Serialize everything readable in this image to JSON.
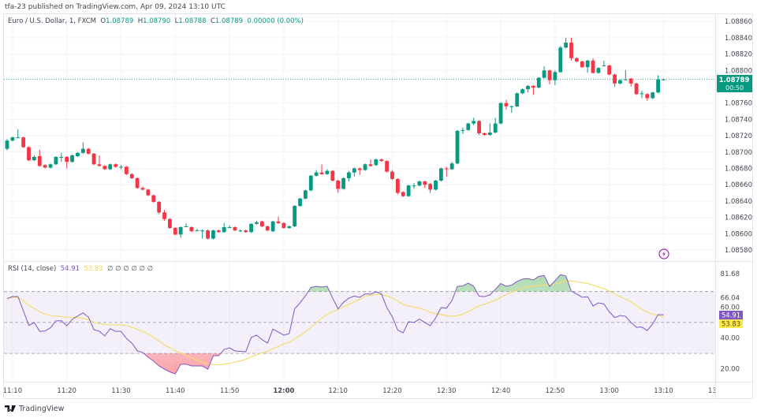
{
  "published": "tfa-23 published on TradingView.com, Apr 09, 2024 13:10 UTC",
  "legend": {
    "symbol": "Euro / U.S. Dollar, 1, FXCM",
    "o_label": "O",
    "o": "1.08789",
    "h_label": "H",
    "h": "1.08790",
    "l_label": "L",
    "l": "1.08788",
    "c_label": "C",
    "c": "1.08789",
    "change": "0.00000 (0.00%)"
  },
  "rsi_legend": {
    "title": "RSI (14, close)",
    "rsi": "54.91",
    "ma": "53.83",
    "extras": "∅ ∅ ∅ ∅ ∅ ∅"
  },
  "price_label": {
    "value": "1.08789",
    "countdown": "00:50"
  },
  "rsi_labels": {
    "rsi": "54.91",
    "ma": "53.83"
  },
  "footer": {
    "brand": "TradingView"
  },
  "icons": {
    "alert": "lightning-icon",
    "logo": "tradingview-logo"
  },
  "colors": {
    "up": "#089981",
    "down": "#f23645",
    "rsi": "#7e57c2",
    "rsi_ma": "#f5dc6e",
    "price_line": "#089981",
    "alert": "#9c27b0"
  },
  "chart_data": [
    {
      "type": "candlestick",
      "title": "Euro / U.S. Dollar, 1, FXCM",
      "x_ticks": [
        "11:10",
        "11:20",
        "11:30",
        "11:40",
        "11:50",
        "12:00",
        "12:10",
        "12:20",
        "12:30",
        "12:40",
        "12:50",
        "13:00",
        "13:10",
        "13:20"
      ],
      "first_bar_time": "11:09",
      "last_bar_time": "13:10",
      "interval_minutes": 1,
      "y_ticks": [
        "1.08860",
        "1.08840",
        "1.08820",
        "1.08800",
        "1.08760",
        "1.08740",
        "1.08720",
        "1.08700",
        "1.08680",
        "1.08660",
        "1.08640",
        "1.08620",
        "1.08600",
        "1.08580"
      ],
      "ylim": [
        1.08572,
        1.08868
      ],
      "grid": true,
      "current_price": 1.08789,
      "ohlc": [
        [
          1.08704,
          1.08716,
          1.08702,
          1.08714
        ],
        [
          1.08714,
          1.08719,
          1.08713,
          1.08718
        ],
        [
          1.08718,
          1.08728,
          1.08717,
          1.08718
        ],
        [
          1.08718,
          1.08719,
          1.08705,
          1.08706
        ],
        [
          1.08706,
          1.08707,
          1.08689,
          1.0869
        ],
        [
          1.0869,
          1.08696,
          1.08689,
          1.08694
        ],
        [
          1.08695,
          1.08703,
          1.08682,
          1.08683
        ],
        [
          1.08684,
          1.08685,
          1.0868,
          1.08681
        ],
        [
          1.08681,
          1.08686,
          1.0868,
          1.08685
        ],
        [
          1.08685,
          1.08695,
          1.08684,
          1.08694
        ],
        [
          1.08694,
          1.08699,
          1.08688,
          1.08694
        ],
        [
          1.08694,
          1.08695,
          1.0868,
          1.08688
        ],
        [
          1.08688,
          1.08697,
          1.08687,
          1.08696
        ],
        [
          1.08695,
          1.087,
          1.08694,
          1.08699
        ],
        [
          1.08699,
          1.08712,
          1.08698,
          1.08704
        ],
        [
          1.08704,
          1.08705,
          1.08697,
          1.08698
        ],
        [
          1.08698,
          1.08699,
          1.08684,
          1.08685
        ],
        [
          1.08685,
          1.08696,
          1.08682,
          1.08683
        ],
        [
          1.08683,
          1.08684,
          1.08678,
          1.08679
        ],
        [
          1.08679,
          1.08686,
          1.08678,
          1.08685
        ],
        [
          1.08685,
          1.08686,
          1.08681,
          1.08682
        ],
        [
          1.08682,
          1.08684,
          1.08679,
          1.08682
        ],
        [
          1.08682,
          1.08683,
          1.08672,
          1.08673
        ],
        [
          1.08673,
          1.08674,
          1.08667,
          1.08668
        ],
        [
          1.08668,
          1.08669,
          1.08655,
          1.08656
        ],
        [
          1.08656,
          1.08658,
          1.08653,
          1.08654
        ],
        [
          1.08654,
          1.08655,
          1.08646,
          1.08647
        ],
        [
          1.08647,
          1.08648,
          1.08638,
          1.08639
        ],
        [
          1.08639,
          1.0864,
          1.08624,
          1.08626
        ],
        [
          1.08626,
          1.08629,
          1.08616,
          1.08618
        ],
        [
          1.08618,
          1.08619,
          1.08606,
          1.08607
        ],
        [
          1.08607,
          1.08608,
          1.08598,
          1.08599
        ],
        [
          1.08599,
          1.08609,
          1.08595,
          1.08608
        ],
        [
          1.08609,
          1.08613,
          1.08608,
          1.08609
        ],
        [
          1.08608,
          1.08609,
          1.08602,
          1.08603
        ],
        [
          1.08604,
          1.08606,
          1.08603,
          1.08604
        ],
        [
          1.08604,
          1.08605,
          1.08594,
          1.08604
        ],
        [
          1.08604,
          1.08605,
          1.08593,
          1.08594
        ],
        [
          1.08594,
          1.08605,
          1.08593,
          1.08604
        ],
        [
          1.08604,
          1.08605,
          1.08601,
          1.08602
        ],
        [
          1.08602,
          1.08613,
          1.08601,
          1.08608
        ],
        [
          1.08608,
          1.0861,
          1.08607,
          1.08608
        ],
        [
          1.08608,
          1.08609,
          1.08603,
          1.08604
        ],
        [
          1.08604,
          1.08605,
          1.08602,
          1.08604
        ],
        [
          1.08604,
          1.08605,
          1.08601,
          1.08602
        ],
        [
          1.08602,
          1.08613,
          1.08601,
          1.08612
        ],
        [
          1.08612,
          1.08616,
          1.08611,
          1.08614
        ],
        [
          1.08615,
          1.08616,
          1.08608,
          1.08609
        ],
        [
          1.08609,
          1.0861,
          1.08603,
          1.08604
        ],
        [
          1.08603,
          1.08616,
          1.08602,
          1.08615
        ],
        [
          1.08615,
          1.08621,
          1.08612,
          1.08613
        ],
        [
          1.08613,
          1.08614,
          1.08606,
          1.08607
        ],
        [
          1.08607,
          1.0861,
          1.08606,
          1.08609
        ],
        [
          1.08609,
          1.08635,
          1.08608,
          1.08634
        ],
        [
          1.08634,
          1.08644,
          1.08633,
          1.08643
        ],
        [
          1.08643,
          1.08654,
          1.08642,
          1.08653
        ],
        [
          1.08653,
          1.08672,
          1.08652,
          1.08671
        ],
        [
          1.08671,
          1.08678,
          1.0867,
          1.08675
        ],
        [
          1.08675,
          1.08685,
          1.08672,
          1.08673
        ],
        [
          1.08673,
          1.08679,
          1.08672,
          1.08677
        ],
        [
          1.08677,
          1.08678,
          1.08664,
          1.08665
        ],
        [
          1.08665,
          1.08666,
          1.0865,
          1.08655
        ],
        [
          1.08655,
          1.08669,
          1.08654,
          1.08668
        ],
        [
          1.08668,
          1.08677,
          1.08664,
          1.08675
        ],
        [
          1.08675,
          1.08681,
          1.0867,
          1.0868
        ],
        [
          1.0868,
          1.08681,
          1.08672,
          1.08678
        ],
        [
          1.08678,
          1.08686,
          1.08677,
          1.08685
        ],
        [
          1.08685,
          1.08691,
          1.08682,
          1.08683
        ],
        [
          1.08684,
          1.08692,
          1.08683,
          1.08691
        ],
        [
          1.08691,
          1.08692,
          1.08688,
          1.08689
        ],
        [
          1.08689,
          1.0869,
          1.08675,
          1.08676
        ],
        [
          1.08676,
          1.08678,
          1.08666,
          1.08667
        ],
        [
          1.08667,
          1.08668,
          1.08648,
          1.0865
        ],
        [
          1.08651,
          1.08652,
          1.08645,
          1.08646
        ],
        [
          1.08646,
          1.0866,
          1.08645,
          1.08659
        ],
        [
          1.08659,
          1.08662,
          1.08655,
          1.08659
        ],
        [
          1.08659,
          1.08665,
          1.08658,
          1.08664
        ],
        [
          1.08664,
          1.08665,
          1.08656,
          1.0866
        ],
        [
          1.08661,
          1.08662,
          1.0865,
          1.08654
        ],
        [
          1.08654,
          1.08666,
          1.08653,
          1.08665
        ],
        [
          1.08665,
          1.08681,
          1.08664,
          1.0868
        ],
        [
          1.0868,
          1.08682,
          1.0867,
          1.08679
        ],
        [
          1.08679,
          1.08688,
          1.08678,
          1.08686
        ],
        [
          1.08686,
          1.08727,
          1.08685,
          1.08726
        ],
        [
          1.08726,
          1.0873,
          1.08722,
          1.08727
        ],
        [
          1.08727,
          1.08736,
          1.08726,
          1.08735
        ],
        [
          1.08735,
          1.08742,
          1.08733,
          1.08738
        ],
        [
          1.08738,
          1.08739,
          1.08721,
          1.08723
        ],
        [
          1.08723,
          1.08724,
          1.0872,
          1.08721
        ],
        [
          1.08721,
          1.08735,
          1.0872,
          1.08724
        ],
        [
          1.08724,
          1.08742,
          1.08723,
          1.08735
        ],
        [
          1.08735,
          1.08761,
          1.08734,
          1.0876
        ],
        [
          1.0876,
          1.08764,
          1.08752,
          1.08756
        ],
        [
          1.08756,
          1.08757,
          1.08748,
          1.08756
        ],
        [
          1.08756,
          1.08773,
          1.08755,
          1.08772
        ],
        [
          1.08772,
          1.08778,
          1.08771,
          1.08777
        ],
        [
          1.08777,
          1.08782,
          1.08773,
          1.08781
        ],
        [
          1.08781,
          1.08782,
          1.0877,
          1.08779
        ],
        [
          1.08779,
          1.08792,
          1.08778,
          1.08791
        ],
        [
          1.08791,
          1.08805,
          1.0879,
          1.088
        ],
        [
          1.088,
          1.08801,
          1.08783,
          1.08788
        ],
        [
          1.08788,
          1.088,
          1.08782,
          1.08798
        ],
        [
          1.08798,
          1.0883,
          1.08797,
          1.08828
        ],
        [
          1.08828,
          1.0884,
          1.08827,
          1.08834
        ],
        [
          1.08834,
          1.0884,
          1.08812,
          1.08815
        ],
        [
          1.08815,
          1.08816,
          1.0881,
          1.08811
        ],
        [
          1.08811,
          1.08812,
          1.08803,
          1.08804
        ],
        [
          1.08804,
          1.08813,
          1.08797,
          1.08812
        ],
        [
          1.08812,
          1.08815,
          1.08796,
          1.08797
        ],
        [
          1.08797,
          1.08804,
          1.08796,
          1.08803
        ],
        [
          1.08806,
          1.08812,
          1.08805,
          1.08806
        ],
        [
          1.08806,
          1.08807,
          1.08794,
          1.08795
        ],
        [
          1.08795,
          1.08796,
          1.0878,
          1.08784
        ],
        [
          1.08784,
          1.08789,
          1.08783,
          1.08788
        ],
        [
          1.08789,
          1.088,
          1.08788,
          1.08789
        ],
        [
          1.0879,
          1.08791,
          1.0878,
          1.08784
        ],
        [
          1.08784,
          1.08785,
          1.0877,
          1.08771
        ],
        [
          1.08772,
          1.08775,
          1.08766,
          1.08772
        ],
        [
          1.08771,
          1.08772,
          1.08763,
          1.08766
        ],
        [
          1.08766,
          1.08774,
          1.08765,
          1.08773
        ],
        [
          1.08773,
          1.08794,
          1.08772,
          1.08789
        ],
        [
          1.08789,
          1.0879,
          1.08788,
          1.08789
        ]
      ]
    },
    {
      "type": "line",
      "title": "RSI (14, close)",
      "y_ticks": [
        "81.68",
        "66.04",
        "60.00",
        "40.00",
        "20.00"
      ],
      "bands": [
        70,
        50,
        30
      ],
      "ylim": [
        10,
        85
      ],
      "ma_length": 14,
      "rsi": [
        65.5,
        66.8,
        66.8,
        57.6,
        48.1,
        50.0,
        44.3,
        44.5,
        46.6,
        51.1,
        51.1,
        47.9,
        52.0,
        54.2,
        56.2,
        53.5,
        45.4,
        44.3,
        41.3,
        46.0,
        44.3,
        44.3,
        39.7,
        36.7,
        31.6,
        30.6,
        27.5,
        25.0,
        21.9,
        19.8,
        18.0,
        16.8,
        22.9,
        23.1,
        21.9,
        21.9,
        21.9,
        19.8,
        28.5,
        28.5,
        32.6,
        33.6,
        31.6,
        31.3,
        31.1,
        40.3,
        41.8,
        38.9,
        36.7,
        45.7,
        43.8,
        41.8,
        42.8,
        58.8,
        62.7,
        67.3,
        72.6,
        73.4,
        72.9,
        73.4,
        65.8,
        58.8,
        63.0,
        65.8,
        67.1,
        66.3,
        68.5,
        68.3,
        69.8,
        68.6,
        59.6,
        53.7,
        45.1,
        43.3,
        50.5,
        50.0,
        52.2,
        50.0,
        47.9,
        53.0,
        59.6,
        59.3,
        64.2,
        73.4,
        73.7,
        75.5,
        73.4,
        67.0,
        66.8,
        67.8,
        71.4,
        75.2,
        73.4,
        74.2,
        76.6,
        78.1,
        78.4,
        77.5,
        79.8,
        80.4,
        73.3,
        77.0,
        80.9,
        80.1,
        70.2,
        68.5,
        66.3,
        66.7,
        60.7,
        62.7,
        62.0,
        56.9,
        53.2,
        54.5,
        54.0,
        50.0,
        46.9,
        47.0,
        44.8,
        49.1,
        55.1,
        54.91
      ]
    }
  ]
}
